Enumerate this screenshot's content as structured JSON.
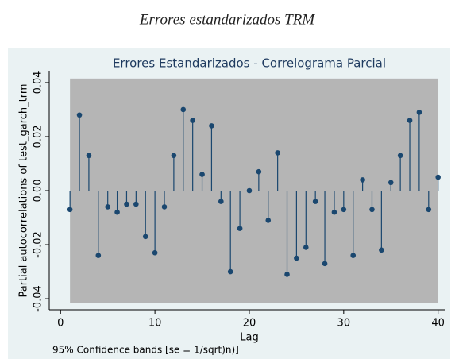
{
  "caption": "Errores estandarizados TRM",
  "chart_data": {
    "type": "stem",
    "title": "Errores Estandarizados - Correlograma Parcial",
    "x_label": "Lag",
    "y_label": "Partial autocorrelations of test_garch_trm",
    "note": "95% Confidence bands [se = 1/sqrt)n)]",
    "x": [
      1,
      2,
      3,
      4,
      5,
      6,
      7,
      8,
      9,
      10,
      11,
      12,
      13,
      14,
      15,
      16,
      17,
      18,
      19,
      20,
      21,
      22,
      23,
      24,
      25,
      26,
      27,
      28,
      29,
      30,
      31,
      32,
      33,
      34,
      35,
      36,
      37,
      38,
      39,
      40
    ],
    "series": [
      {
        "name": "Partial autocorrelations",
        "color": "#1a476f",
        "values": [
          -0.007,
          0.028,
          0.013,
          -0.024,
          -0.006,
          -0.008,
          -0.005,
          -0.005,
          -0.017,
          -0.023,
          -0.006,
          0.013,
          0.03,
          0.026,
          0.006,
          0.024,
          -0.004,
          -0.03,
          -0.014,
          0.0,
          0.007,
          -0.011,
          0.014,
          -0.031,
          -0.025,
          -0.021,
          -0.004,
          -0.027,
          -0.008,
          -0.007,
          -0.024,
          0.004,
          -0.007,
          -0.022,
          0.003,
          0.013,
          0.026,
          0.029,
          -0.007,
          0.005
        ]
      }
    ],
    "confidence_band": {
      "lower": -0.0415,
      "upper": 0.0415,
      "color": "#b5b5b5"
    },
    "xlim": [
      -1.2,
      40.7
    ],
    "ylim": [
      -0.0441,
      0.0441
    ],
    "xticks": [
      0,
      10,
      20,
      30,
      40
    ],
    "yticks": [
      -0.04,
      -0.02,
      {
        "value": 0,
        "label": "0.00"
      },
      0.02,
      0.04
    ]
  }
}
